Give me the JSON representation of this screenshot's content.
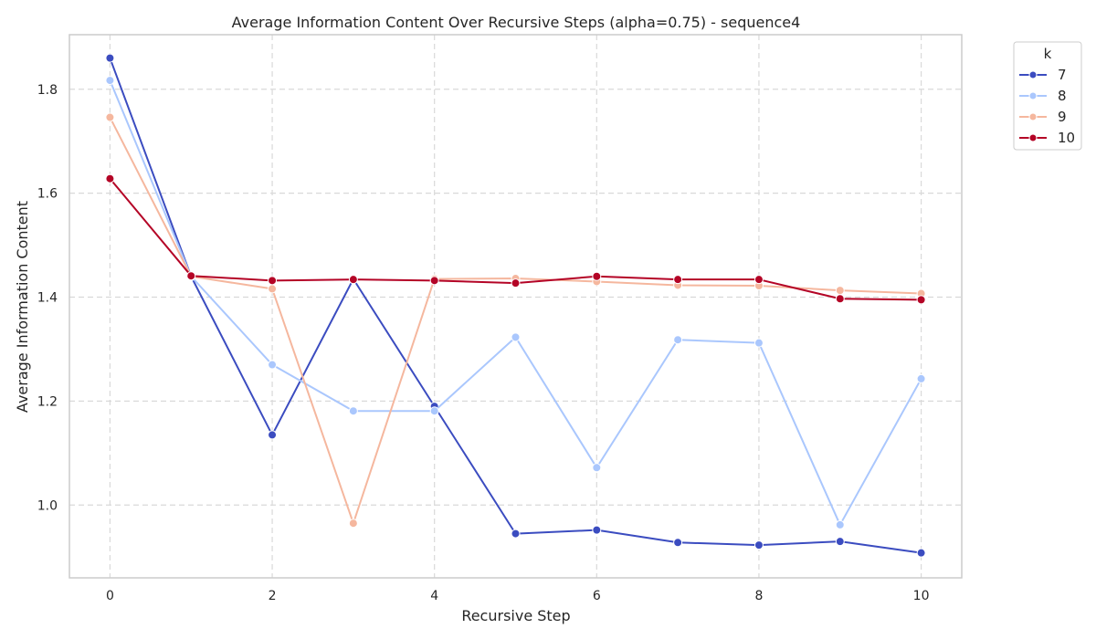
{
  "chart_data": {
    "type": "line",
    "title": "Average Information Content Over Recursive Steps (alpha=0.75) - sequence4",
    "xlabel": "Recursive Step",
    "ylabel": "Average Information Content",
    "xlim": [
      -0.5,
      10.5
    ],
    "ylim": [
      0.86,
      1.905
    ],
    "x_ticks": [
      0,
      2,
      4,
      6,
      8,
      10
    ],
    "y_ticks": [
      1.0,
      1.2,
      1.4,
      1.6,
      1.8
    ],
    "y_tick_labels": [
      "1.0",
      "1.2",
      "1.4",
      "1.6",
      "1.8"
    ],
    "grid": true,
    "legend": {
      "title": "k",
      "placement": "upper-right-outside"
    },
    "x": [
      0,
      1,
      2,
      3,
      4,
      5,
      6,
      7,
      8,
      9,
      10
    ],
    "series": [
      {
        "name": "7",
        "color": "#3b4cc0",
        "values": [
          1.86,
          1.44,
          1.135,
          1.435,
          1.19,
          0.945,
          0.952,
          0.928,
          0.923,
          0.93,
          0.908
        ]
      },
      {
        "name": "8",
        "color": "#aac7fd",
        "values": [
          1.817,
          1.44,
          1.27,
          1.181,
          1.181,
          1.323,
          1.072,
          1.318,
          1.312,
          0.962,
          1.243
        ]
      },
      {
        "name": "9",
        "color": "#f5b79e",
        "values": [
          1.746,
          1.44,
          1.416,
          0.965,
          1.435,
          1.436,
          1.43,
          1.423,
          1.422,
          1.413,
          1.407
        ]
      },
      {
        "name": "10",
        "color": "#b40426",
        "values": [
          1.628,
          1.441,
          1.432,
          1.434,
          1.432,
          1.427,
          1.44,
          1.434,
          1.434,
          1.397,
          1.395
        ]
      }
    ]
  }
}
